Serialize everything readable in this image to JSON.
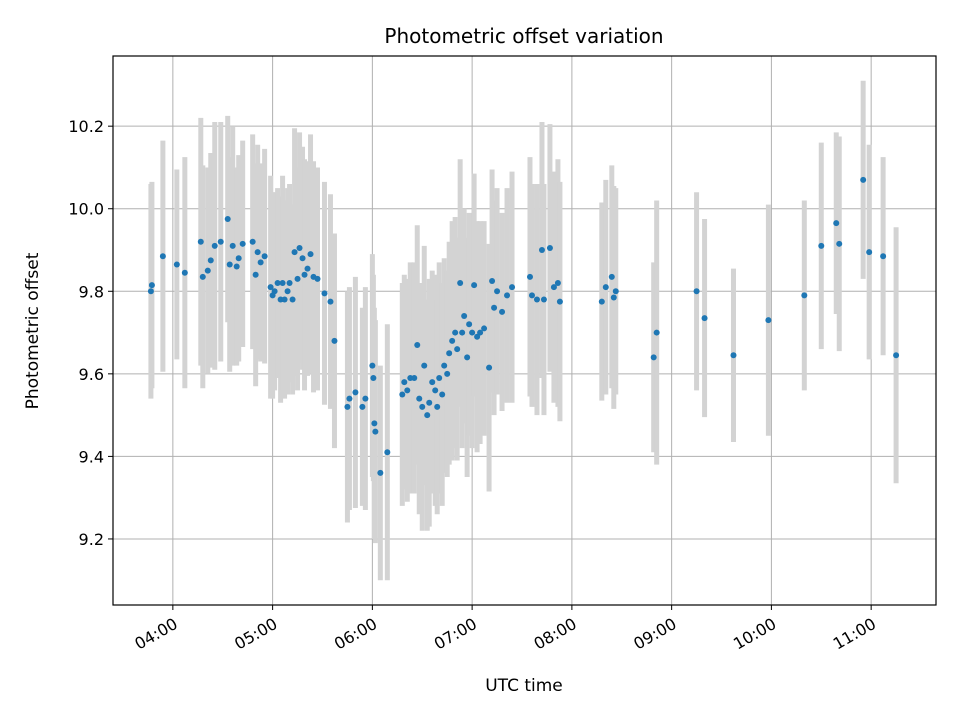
{
  "chart_data": {
    "type": "scatter",
    "title": "Photometric offset variation",
    "xlabel": "UTC time",
    "ylabel": "Photometric offset",
    "x_unit": "hours",
    "xlim": [
      3.4,
      11.65
    ],
    "ylim": [
      9.04,
      10.37
    ],
    "x_ticks": [
      4,
      5,
      6,
      7,
      8,
      9,
      10,
      11
    ],
    "x_tick_labels": [
      "04:00",
      "05:00",
      "06:00",
      "07:00",
      "08:00",
      "09:00",
      "10:00",
      "11:00"
    ],
    "y_ticks": [
      9.2,
      9.4,
      9.6,
      9.8,
      10.0,
      10.2
    ],
    "y_tick_labels": [
      "9.2",
      "9.4",
      "9.6",
      "9.8",
      "10.0",
      "10.2"
    ],
    "grid": true,
    "colors": {
      "points": "#1f77b4",
      "errorbars": "#d3d3d3",
      "grid": "#b0b0b0"
    },
    "series": [
      {
        "columns": [
          "x",
          "y",
          "error"
        ],
        "points": [
          [
            3.78,
            9.8,
            0.26
          ],
          [
            3.79,
            9.815,
            0.25
          ],
          [
            3.9,
            9.885,
            0.28
          ],
          [
            4.04,
            9.865,
            0.23
          ],
          [
            4.12,
            9.845,
            0.28
          ],
          [
            4.28,
            9.92,
            0.3
          ],
          [
            4.3,
            9.835,
            0.27
          ],
          [
            4.35,
            9.85,
            0.25
          ],
          [
            4.38,
            9.875,
            0.26
          ],
          [
            4.42,
            9.91,
            0.3
          ],
          [
            4.48,
            9.92,
            0.29
          ],
          [
            4.55,
            9.975,
            0.25
          ],
          [
            4.57,
            9.865,
            0.26
          ],
          [
            4.6,
            9.91,
            0.29
          ],
          [
            4.64,
            9.86,
            0.24
          ],
          [
            4.66,
            9.88,
            0.25
          ],
          [
            4.7,
            9.915,
            0.25
          ],
          [
            4.8,
            9.92,
            0.26
          ],
          [
            4.83,
            9.84,
            0.27
          ],
          [
            4.85,
            9.895,
            0.26
          ],
          [
            4.88,
            9.87,
            0.24
          ],
          [
            4.92,
            9.885,
            0.26
          ],
          [
            4.98,
            9.81,
            0.27
          ],
          [
            5.0,
            9.79,
            0.25
          ],
          [
            5.02,
            9.8,
            0.24
          ],
          [
            5.05,
            9.82,
            0.23
          ],
          [
            5.08,
            9.78,
            0.25
          ],
          [
            5.1,
            9.82,
            0.26
          ],
          [
            5.12,
            9.78,
            0.24
          ],
          [
            5.15,
            9.8,
            0.25
          ],
          [
            5.17,
            9.82,
            0.24
          ],
          [
            5.2,
            9.78,
            0.23
          ],
          [
            5.22,
            9.895,
            0.3
          ],
          [
            5.25,
            9.83,
            0.27
          ],
          [
            5.27,
            9.905,
            0.28
          ],
          [
            5.3,
            9.88,
            0.27
          ],
          [
            5.32,
            9.84,
            0.28
          ],
          [
            5.35,
            9.855,
            0.26
          ],
          [
            5.38,
            9.89,
            0.29
          ],
          [
            5.41,
            9.835,
            0.28
          ],
          [
            5.45,
            9.83,
            0.27
          ],
          [
            5.52,
            9.795,
            0.27
          ],
          [
            5.58,
            9.775,
            0.26
          ],
          [
            5.62,
            9.68,
            0.26
          ],
          [
            5.75,
            9.52,
            0.28
          ],
          [
            5.77,
            9.54,
            0.27
          ],
          [
            5.83,
            9.555,
            0.28
          ],
          [
            5.9,
            9.52,
            0.24
          ],
          [
            5.93,
            9.54,
            0.27
          ],
          [
            6.0,
            9.62,
            0.27
          ],
          [
            6.01,
            9.59,
            0.25
          ],
          [
            6.02,
            9.48,
            0.28
          ],
          [
            6.03,
            9.46,
            0.27
          ],
          [
            6.08,
            9.36,
            0.26
          ],
          [
            6.15,
            9.41,
            0.31
          ],
          [
            6.3,
            9.55,
            0.27
          ],
          [
            6.32,
            9.58,
            0.26
          ],
          [
            6.35,
            9.56,
            0.27
          ],
          [
            6.38,
            9.59,
            0.28
          ],
          [
            6.42,
            9.59,
            0.28
          ],
          [
            6.45,
            9.67,
            0.29
          ],
          [
            6.47,
            9.54,
            0.28
          ],
          [
            6.5,
            9.52,
            0.3
          ],
          [
            6.52,
            9.62,
            0.29
          ],
          [
            6.55,
            9.5,
            0.28
          ],
          [
            6.57,
            9.53,
            0.3
          ],
          [
            6.6,
            9.58,
            0.27
          ],
          [
            6.63,
            9.56,
            0.28
          ],
          [
            6.65,
            9.52,
            0.26
          ],
          [
            6.67,
            9.59,
            0.28
          ],
          [
            6.7,
            9.55,
            0.27
          ],
          [
            6.72,
            9.62,
            0.26
          ],
          [
            6.75,
            9.6,
            0.25
          ],
          [
            6.77,
            9.65,
            0.27
          ],
          [
            6.8,
            9.68,
            0.29
          ],
          [
            6.83,
            9.7,
            0.28
          ],
          [
            6.85,
            9.66,
            0.27
          ],
          [
            6.88,
            9.82,
            0.3
          ],
          [
            6.9,
            9.7,
            0.28
          ],
          [
            6.92,
            9.74,
            0.26
          ],
          [
            6.95,
            9.64,
            0.29
          ],
          [
            6.97,
            9.72,
            0.27
          ],
          [
            7.0,
            9.7,
            0.28
          ],
          [
            7.02,
            9.815,
            0.27
          ],
          [
            7.05,
            9.69,
            0.28
          ],
          [
            7.08,
            9.7,
            0.27
          ],
          [
            7.12,
            9.71,
            0.26
          ],
          [
            7.17,
            9.615,
            0.3
          ],
          [
            7.2,
            9.825,
            0.27
          ],
          [
            7.22,
            9.76,
            0.26
          ],
          [
            7.25,
            9.8,
            0.25
          ],
          [
            7.3,
            9.75,
            0.24
          ],
          [
            7.35,
            9.79,
            0.26
          ],
          [
            7.4,
            9.81,
            0.28
          ],
          [
            7.58,
            9.835,
            0.29
          ],
          [
            7.6,
            9.79,
            0.27
          ],
          [
            7.65,
            9.78,
            0.28
          ],
          [
            7.7,
            9.9,
            0.31
          ],
          [
            7.72,
            9.78,
            0.28
          ],
          [
            7.78,
            9.905,
            0.3
          ],
          [
            7.82,
            9.81,
            0.28
          ],
          [
            7.86,
            9.82,
            0.3
          ],
          [
            7.88,
            9.775,
            0.29
          ],
          [
            8.3,
            9.775,
            0.24
          ],
          [
            8.34,
            9.81,
            0.26
          ],
          [
            8.4,
            9.835,
            0.27
          ],
          [
            8.42,
            9.785,
            0.27
          ],
          [
            8.44,
            9.8,
            0.25
          ],
          [
            8.82,
            9.64,
            0.23
          ],
          [
            8.85,
            9.7,
            0.32
          ],
          [
            9.25,
            9.8,
            0.24
          ],
          [
            9.33,
            9.735,
            0.24
          ],
          [
            9.62,
            9.645,
            0.21
          ],
          [
            9.97,
            9.73,
            0.28
          ],
          [
            10.33,
            9.79,
            0.23
          ],
          [
            10.5,
            9.91,
            0.25
          ],
          [
            10.65,
            9.965,
            0.22
          ],
          [
            10.68,
            9.915,
            0.26
          ],
          [
            10.92,
            10.07,
            0.24
          ],
          [
            10.98,
            9.895,
            0.26
          ],
          [
            11.12,
            9.885,
            0.24
          ],
          [
            11.25,
            9.645,
            0.31
          ]
        ]
      }
    ]
  }
}
